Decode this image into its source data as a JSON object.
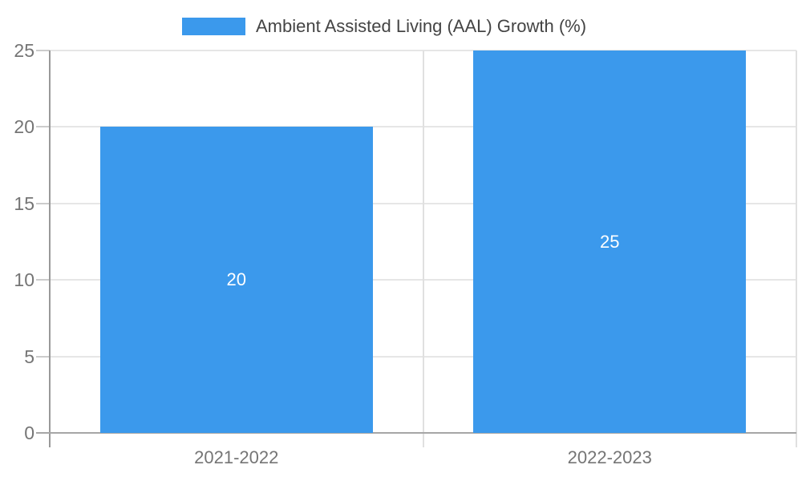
{
  "chart_data": {
    "type": "bar",
    "categories": [
      "2021-2022",
      "2022-2023"
    ],
    "values": [
      20,
      25
    ],
    "bar_labels": [
      "20",
      "25"
    ],
    "legend": "Ambient Assisted Living (AAL) Growth (%)",
    "legend_position": "top",
    "xlabel": "",
    "ylabel": "",
    "ylim": [
      0,
      25
    ],
    "yticks": [
      0,
      5,
      10,
      15,
      20,
      25
    ],
    "grid": true,
    "colors": {
      "bar": "#3B99EC",
      "bar_label": "#FFFFFF",
      "gridline": "#E6E6E6",
      "boundary_line": "#E0E0E0",
      "axis_line": "#A6A6A6",
      "y_axis_line": "#999999",
      "tick": "#CCCCCC",
      "tick_label": "#757575",
      "legend_text": "#444444",
      "background": "#FFFFFF"
    }
  }
}
